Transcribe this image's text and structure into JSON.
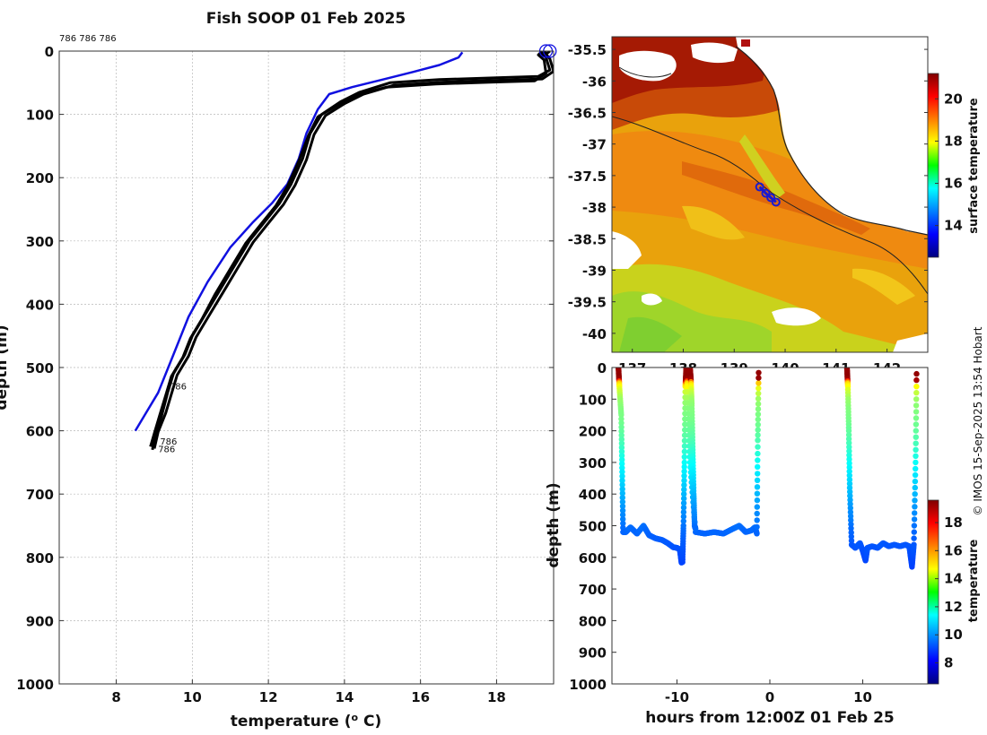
{
  "figure": {
    "title": "Fish SOOP 01 Feb 2025",
    "credit": "© IMOS 15-Sep-2025 13:54 Hobart"
  },
  "colors": {
    "profile": "#000000",
    "climatology": "#1010e0",
    "grid": "#b8b8b8"
  },
  "chart_data": [
    {
      "type": "line",
      "name": "temperature-depth profiles",
      "xlabel": "temperature (° C)",
      "xlabel_pre": "temperature (",
      "xlabel_sup": "o",
      "xlabel_post": " C)",
      "ylabel": "depth (m)",
      "xlim": [
        6.5,
        19.5
      ],
      "ylim": [
        1000,
        0
      ],
      "xticks": [
        8,
        10,
        12,
        14,
        16,
        18
      ],
      "yticks": [
        0,
        100,
        200,
        300,
        400,
        500,
        600,
        700,
        800,
        900,
        1000
      ],
      "grid": true,
      "top_label": "786 786 786",
      "annotations": [
        "786",
        "786",
        "786"
      ],
      "annotation_points": [
        {
          "x": 9.4,
          "y": 535
        },
        {
          "x": 9.15,
          "y": 622
        },
        {
          "x": 9.1,
          "y": 634
        }
      ],
      "markers": [
        {
          "x": 19.3,
          "y": 0
        },
        {
          "x": 19.4,
          "y": 0
        }
      ],
      "series": [
        {
          "name": "climatology",
          "color": "#1010e0",
          "x": [
            17.1,
            17.0,
            16.5,
            15.8,
            15.0,
            14.2,
            13.6,
            13.3,
            13.0,
            12.8,
            12.5,
            12.1,
            11.6,
            11.0,
            10.4,
            9.9,
            9.5,
            9.1,
            8.8,
            8.5
          ],
          "y": [
            2,
            10,
            22,
            33,
            45,
            57,
            68,
            92,
            130,
            170,
            210,
            240,
            270,
            310,
            365,
            420,
            480,
            540,
            570,
            600
          ]
        },
        {
          "name": "profile 1",
          "color": "#000000",
          "x": [
            19.3,
            19.2,
            19.3,
            19.4,
            19.1,
            18.0,
            16.5,
            15.2,
            14.4,
            13.9,
            13.4,
            13.1,
            12.9,
            12.6,
            12.3,
            11.9,
            11.5,
            11.1,
            10.7,
            10.3,
            10.0,
            9.8,
            9.5,
            9.35,
            9.2,
            9.05,
            8.95
          ],
          "y": [
            0,
            5,
            10,
            30,
            40,
            42,
            45,
            50,
            65,
            80,
            100,
            130,
            170,
            210,
            240,
            270,
            300,
            340,
            380,
            420,
            450,
            480,
            510,
            540,
            575,
            605,
            630
          ]
        },
        {
          "name": "profile 2",
          "color": "#000000",
          "x": [
            19.4,
            19.3,
            19.4,
            19.5,
            19.2,
            18.1,
            16.6,
            15.3,
            14.5,
            14.0,
            13.5,
            13.2,
            13.0,
            12.7,
            12.4,
            12.0,
            11.6,
            11.2,
            10.8,
            10.4,
            10.1,
            9.9,
            9.6,
            9.45,
            9.3,
            9.1,
            9.0
          ],
          "y": [
            0,
            5,
            12,
            32,
            44,
            46,
            49,
            54,
            68,
            83,
            102,
            132,
            172,
            212,
            242,
            272,
            302,
            342,
            382,
            422,
            452,
            482,
            512,
            542,
            572,
            602,
            628
          ]
        },
        {
          "name": "profile 3",
          "color": "#000000",
          "x": [
            19.2,
            19.1,
            19.25,
            19.3,
            19.0,
            17.9,
            16.4,
            15.1,
            14.3,
            13.8,
            13.3,
            13.05,
            12.8,
            12.5,
            12.2,
            11.8,
            11.4,
            11.0,
            10.6,
            10.25,
            9.95,
            9.75,
            9.45,
            9.3,
            9.15,
            9.0,
            8.9
          ],
          "y": [
            0,
            6,
            14,
            35,
            47,
            49,
            52,
            57,
            70,
            86,
            104,
            134,
            174,
            214,
            244,
            274,
            304,
            344,
            384,
            424,
            454,
            484,
            514,
            544,
            574,
            604,
            625
          ]
        }
      ]
    },
    {
      "type": "heatmap",
      "name": "surface temperature map",
      "xticks": [
        137,
        138,
        139,
        140,
        141,
        142
      ],
      "xticklabels": [
        "137",
        "138",
        "139",
        "140",
        "141",
        "142"
      ],
      "yticks": [
        -35.5,
        -36,
        -36.5,
        -37,
        -37.5,
        -38,
        -38.5,
        -39,
        -39.5,
        -40
      ],
      "yticklabels": [
        "-35.5",
        "-36",
        "-36.5",
        "-37",
        "-37.5",
        "-38",
        "-38.5",
        "-39",
        "-39.5",
        "-40"
      ],
      "xlim": [
        136.6,
        142.8
      ],
      "ylim": [
        -40.3,
        -35.3
      ],
      "colorbar_label": "surface temperature",
      "colorbar_ticks": [
        14,
        16,
        18,
        20
      ],
      "colorbar_range": [
        12.5,
        21.2
      ],
      "track": [
        {
          "lon": 139.5,
          "lat": -37.68
        },
        {
          "lon": 139.62,
          "lat": -37.78
        },
        {
          "lon": 139.72,
          "lat": -37.85
        },
        {
          "lon": 139.82,
          "lat": -37.92
        }
      ]
    },
    {
      "type": "scatter",
      "name": "depth time series",
      "xlabel": "hours from 12:00Z 01 Feb 25",
      "ylabel": "depth (m)",
      "xlim": [
        -17,
        17
      ],
      "ylim": [
        1000,
        0
      ],
      "xticks": [
        -10,
        0,
        10
      ],
      "yticks": [
        0,
        100,
        200,
        300,
        400,
        500,
        600,
        700,
        800,
        900,
        1000
      ],
      "colorbar_label": "temperature",
      "colorbar_ticks": [
        8,
        10,
        12,
        14,
        16,
        18
      ],
      "colorbar_range": [
        6.5,
        19.6
      ],
      "casts": [
        {
          "x": [
            -16.3,
            -16.2,
            -16.0,
            -15.9,
            -15.8,
            -15.5,
            -15.0,
            -14.3,
            -13.6,
            -13.0,
            -12.3,
            -11.6,
            -11.0,
            -10.4,
            -10.0,
            -9.7,
            -9.5
          ],
          "y": [
            0,
            60,
            150,
            330,
            520,
            520,
            505,
            525,
            500,
            530,
            540,
            545,
            555,
            568,
            570,
            575,
            620
          ]
        },
        {
          "x": [
            -9.4,
            -9.3,
            -9.2,
            -9.1,
            -9.0,
            -8.9,
            -8.6,
            -8.0,
            -7.0,
            -6.0,
            -5.0,
            -4.0,
            -3.3,
            -2.6,
            -2.0,
            -1.6,
            -1.4,
            -1.3,
            -1.2
          ],
          "y": [
            615,
            500,
            300,
            60,
            0,
            60,
            300,
            520,
            525,
            520,
            525,
            510,
            500,
            520,
            515,
            505,
            525,
            230,
            0
          ]
        },
        {
          "x": [
            -8.6,
            -8.5,
            -8.4,
            -8.3,
            -8.2,
            -8.1,
            -8.0
          ],
          "y": [
            0,
            40,
            120,
            260,
            400,
            500,
            510
          ]
        },
        {
          "x": [
            8.3,
            8.4,
            8.5,
            8.6,
            8.8,
            9.2,
            9.7,
            10.0,
            10.3,
            10.5,
            11.0,
            11.6,
            12.2,
            12.8,
            13.4,
            14.0,
            14.6,
            15.0,
            15.3,
            15.5,
            15.7,
            15.8
          ],
          "y": [
            0,
            60,
            200,
            380,
            560,
            570,
            555,
            580,
            610,
            570,
            565,
            570,
            555,
            565,
            560,
            565,
            560,
            565,
            630,
            560,
            280,
            0
          ]
        }
      ]
    }
  ]
}
